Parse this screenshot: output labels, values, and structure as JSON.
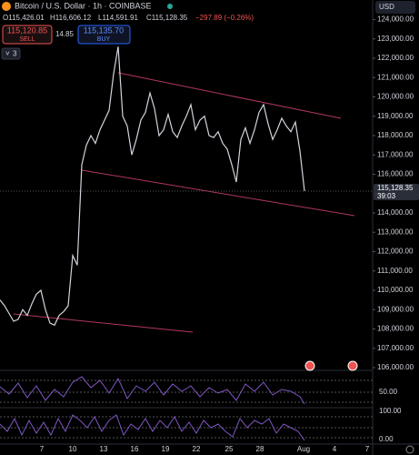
{
  "header": {
    "symbol": "Bitcoin / U.S. Dollar · 1h · COINBASE",
    "open": "O115,426.01",
    "high": "H116,606.12",
    "low": "L114,591.91",
    "close": "C115,128.35",
    "change": "−297.89 (−0.26%)"
  },
  "trade": {
    "sell_price": "115,120.85",
    "sell": "SELL",
    "spread": "14.85",
    "buy_price": "115,135.70",
    "buy": "BUY"
  },
  "indicators_count": "3",
  "price_axis": {
    "currency": "USD",
    "range": [
      105860,
      125010
    ],
    "ticks": [
      {
        "value": 124000,
        "label": "124,000.00"
      },
      {
        "value": 123000,
        "label": "123,000.00"
      },
      {
        "value": 122000,
        "label": "122,000.00"
      },
      {
        "value": 121000,
        "label": "121,000.00"
      },
      {
        "value": 120000,
        "label": "120,000.00"
      },
      {
        "value": 119000,
        "label": "119,000.00"
      },
      {
        "value": 118000,
        "label": "118,000.00"
      },
      {
        "value": 117000,
        "label": "117,000.00"
      },
      {
        "value": 116000,
        "label": "116,000.00"
      },
      {
        "value": 114000,
        "label": "114,000.00"
      },
      {
        "value": 113000,
        "label": "113,000.00"
      },
      {
        "value": 112000,
        "label": "112,000.00"
      },
      {
        "value": 111000,
        "label": "111,000.00"
      },
      {
        "value": 110000,
        "label": "110,000.00"
      },
      {
        "value": 109000,
        "label": "109,000.00"
      },
      {
        "value": 108000,
        "label": "108,000.00"
      },
      {
        "value": 107000,
        "label": "107,000.00"
      },
      {
        "value": 106000,
        "label": "106,000.00"
      }
    ],
    "current": {
      "value": 115128.35,
      "label": "115,128.35",
      "countdown": "39:03"
    }
  },
  "price": {
    "closes": [
      109500,
      109200,
      108800,
      108400,
      108500,
      109000,
      108700,
      109300,
      109800,
      110000,
      109000,
      108300,
      108200,
      108700,
      108900,
      109200,
      111800,
      111300,
      116500,
      117500,
      118000,
      117600,
      118300,
      118800,
      119300,
      121200,
      122600,
      119000,
      118500,
      117000,
      117800,
      118800,
      119200,
      120200,
      119400,
      118000,
      118300,
      119100,
      118200,
      117900,
      118500,
      119000,
      119600,
      118300,
      118800,
      119000,
      118000,
      117900,
      118200,
      117600,
      117300,
      116500,
      115600,
      117800,
      118400,
      117600,
      118300,
      119200,
      119600,
      118600,
      117800,
      118300,
      118900,
      118500,
      118200,
      118700,
      117200,
      115128.35
    ]
  },
  "panel_labels": {
    "osc1_mid": "50.00",
    "osc2_top": "100.00",
    "osc2_bottom": "0.00"
  },
  "date_axis": [
    "7",
    "10",
    "13",
    "16",
    "19",
    "22",
    "25",
    "28",
    "Aug",
    "4",
    "7"
  ]
}
